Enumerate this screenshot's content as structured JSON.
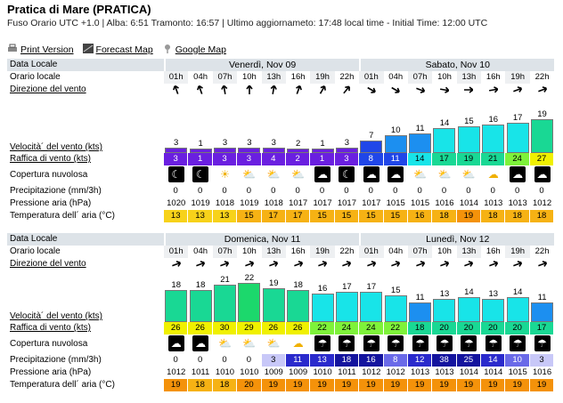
{
  "header": {
    "title": "Pratica di Mare (PRATICA)",
    "subtitle": "Fuso Orario UTC +1.0 | Alba: 6:51 Tramonto: 16:57 | Ultimo aggiornameto: 17:48 local time - Initial Time: 12:00 UTC"
  },
  "links": [
    {
      "label": "Print Version",
      "icon": "print-icon"
    },
    {
      "label": "Forecast Map",
      "icon": "map-icon"
    },
    {
      "label": "Google Map",
      "icon": "pin-icon"
    }
  ],
  "labels": {
    "data": "Data Locale",
    "orario": "Orario locale",
    "direzione": "Direzione del vento",
    "velocita": "Velocità´ del vento (kts)",
    "raffica": "Raffica di vento (kts)",
    "copertura": "Copertura nuvolosa",
    "prec": "Precipitazione (mm/3h)",
    "press": "Pressione aria (hPa)",
    "temp": "Temperatura dell´ aria (°C)"
  },
  "sections": [
    {
      "days": [
        "Venerdì, Nov 09",
        "Sabato, Nov 10"
      ],
      "hours": [
        "01h",
        "04h",
        "07h",
        "10h",
        "13h",
        "16h",
        "19h",
        "22h",
        "01h",
        "04h",
        "07h",
        "10h",
        "13h",
        "16h",
        "19h",
        "22h"
      ],
      "dir": [
        160,
        160,
        170,
        180,
        190,
        200,
        210,
        220,
        300,
        300,
        290,
        280,
        270,
        260,
        250,
        250
      ],
      "speed": [
        3,
        1,
        3,
        3,
        3,
        2,
        1,
        3,
        7,
        10,
        11,
        14,
        15,
        16,
        17,
        19
      ],
      "gust": [
        3,
        1,
        3,
        3,
        4,
        2,
        1,
        3,
        8,
        11,
        14,
        17,
        19,
        21,
        24,
        27
      ],
      "cloud": [
        "night-moon",
        "night-moon",
        "sun",
        "sun-cloud",
        "sun-cloud",
        "sun-cloud",
        "night-cloud",
        "night-moon",
        "night-cloud",
        "night-cloud",
        "sun-cloud",
        "sun-cloud",
        "sun-cloud",
        "cloud",
        "night-cloud",
        "night-cloud"
      ],
      "prec": [
        "0",
        "0",
        "0",
        "0",
        "0",
        "0",
        "0",
        "0",
        "0",
        "0",
        "0",
        "0",
        "0",
        "0",
        "0",
        "0"
      ],
      "press": [
        "1020",
        "1019",
        "1018",
        "1019",
        "1018",
        "1017",
        "1017",
        "1017",
        "1017",
        "1015",
        "1015",
        "1016",
        "1014",
        "1013",
        "1013",
        "1012"
      ],
      "temp": [
        "13",
        "13",
        "13",
        "15",
        "17",
        "17",
        "15",
        "15",
        "15",
        "15",
        "16",
        "18",
        "19",
        "18",
        "18",
        "18"
      ]
    },
    {
      "days": [
        "Domenica, Nov 11",
        "Lunedì, Nov 12"
      ],
      "hours": [
        "01h",
        "04h",
        "07h",
        "10h",
        "13h",
        "16h",
        "19h",
        "22h",
        "01h",
        "04h",
        "07h",
        "10h",
        "13h",
        "16h",
        "19h",
        "22h"
      ],
      "dir": [
        250,
        250,
        250,
        250,
        250,
        250,
        250,
        250,
        250,
        250,
        250,
        250,
        250,
        250,
        250,
        250
      ],
      "speed": [
        18,
        18,
        21,
        22,
        19,
        18,
        16,
        17,
        17,
        15,
        11,
        13,
        14,
        13,
        14,
        11
      ],
      "gust": [
        26,
        26,
        30,
        29,
        26,
        26,
        22,
        24,
        24,
        22,
        18,
        20,
        20,
        20,
        20,
        17
      ],
      "cloud": [
        "night-cloud",
        "night-cloud",
        "sun-cloud",
        "sun-cloud",
        "sun-cloud",
        "cloud",
        "rain",
        "rain",
        "rain",
        "rain",
        "rain",
        "rain",
        "rain",
        "rain",
        "rain",
        "rain"
      ],
      "prec": [
        "0",
        "0",
        "0",
        "0",
        "3",
        "11",
        "13",
        "18",
        "16",
        "8",
        "12",
        "38",
        "25",
        "14",
        "10",
        "3"
      ],
      "press": [
        "1012",
        "1011",
        "1010",
        "1010",
        "1009",
        "1009",
        "1010",
        "1011",
        "1012",
        "1012",
        "1013",
        "1013",
        "1014",
        "1014",
        "1015",
        "1016"
      ],
      "temp": [
        "19",
        "18",
        "18",
        "20",
        "19",
        "19",
        "19",
        "19",
        "19",
        "19",
        "19",
        "19",
        "19",
        "19",
        "19",
        "19"
      ]
    }
  ]
}
